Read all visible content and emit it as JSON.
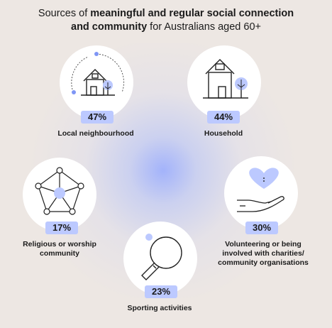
{
  "title": {
    "prefix": "Sources of ",
    "bold1": "meaningful and regular social connection",
    "bold2": "and community",
    "suffix": " for Australians aged 60+"
  },
  "colors": {
    "accent": "#bcc9ff",
    "accent_dark": "#7f96f5",
    "background": "#ede7e3"
  },
  "items": [
    {
      "percent": "47%",
      "label": "Local neighbourhood",
      "icon": "house-neighbourhood-icon"
    },
    {
      "percent": "44%",
      "label": "Household",
      "icon": "house-icon"
    },
    {
      "percent": "17%",
      "label": "Religious or worship\ncommunity",
      "icon": "network-pentagon-icon"
    },
    {
      "percent": "30%",
      "label": "Volunteering or being\ninvolved with charities/\ncommunity organisations",
      "icon": "hand-heart-icon"
    },
    {
      "percent": "23%",
      "label": "Sporting activities",
      "icon": "table-tennis-icon"
    }
  ]
}
